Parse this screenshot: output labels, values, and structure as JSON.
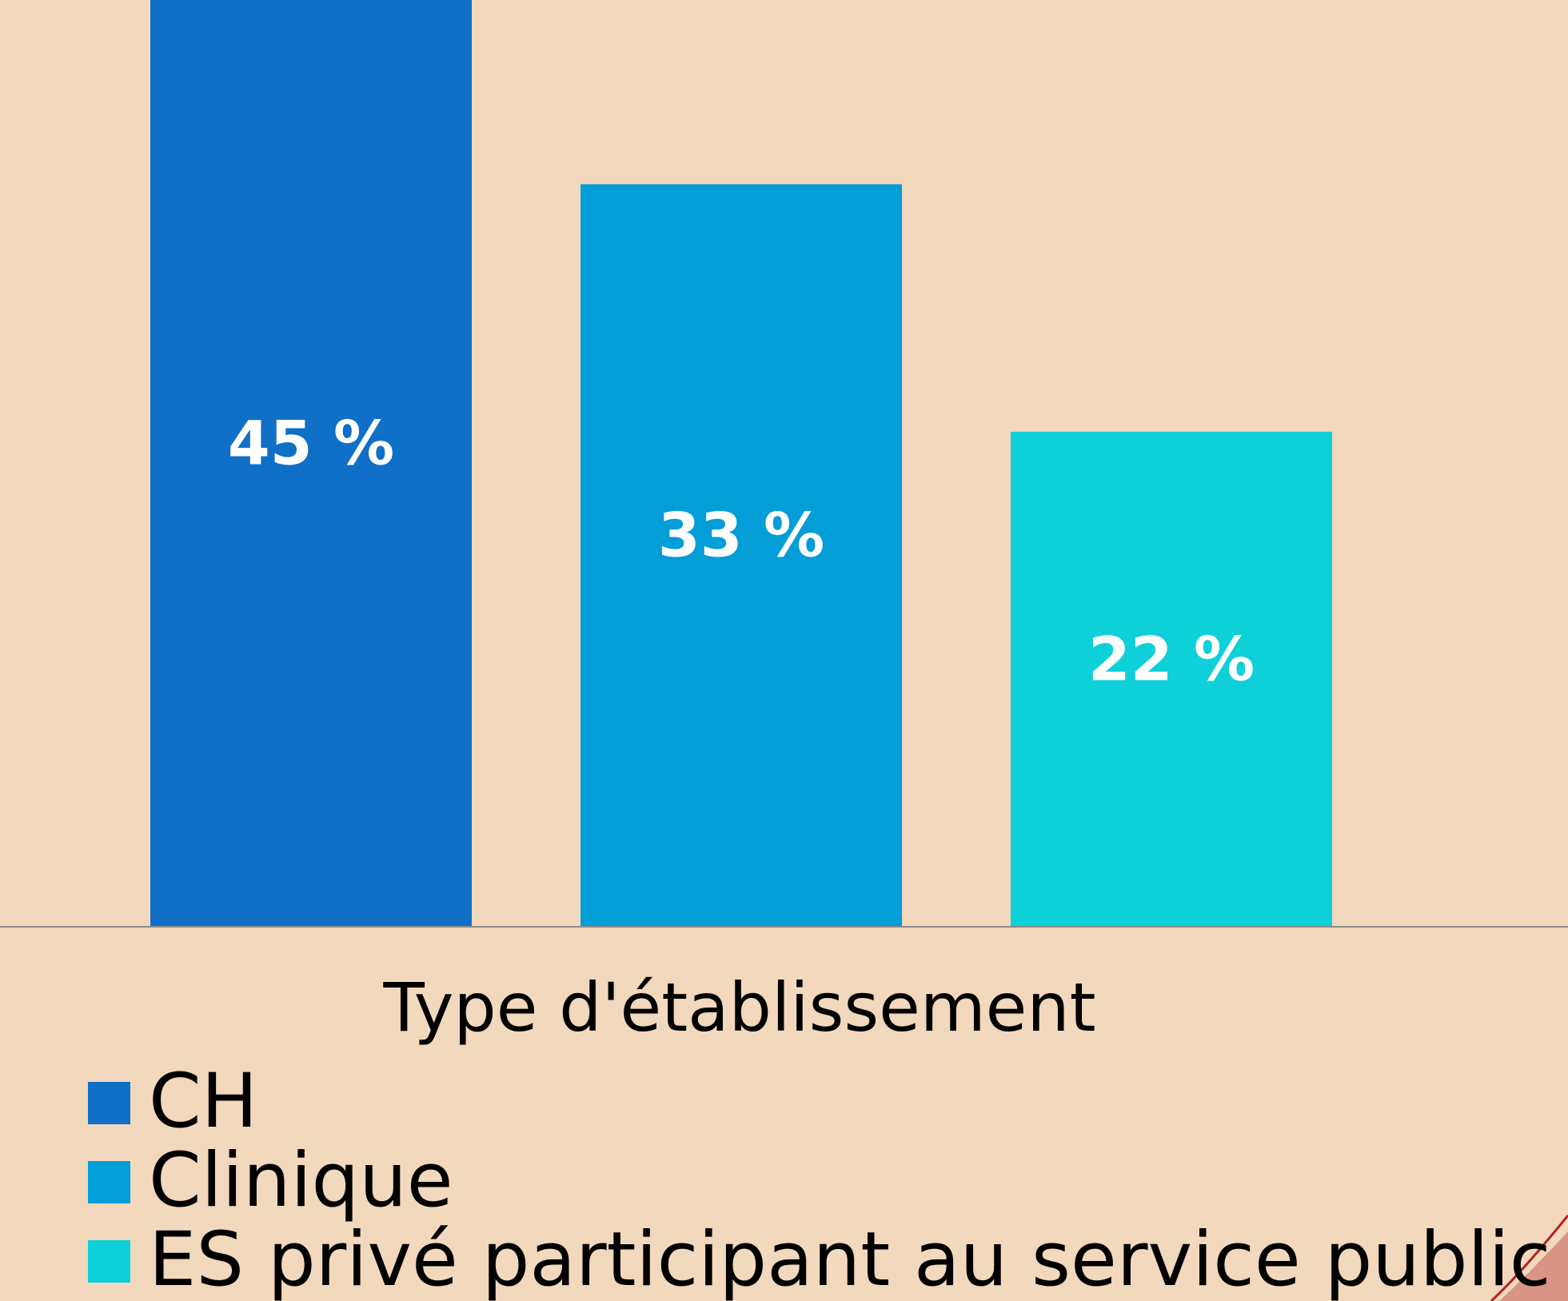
{
  "chart_data": {
    "type": "bar",
    "categories": [
      "CH",
      "Clinique",
      "ES privé participant au service public"
    ],
    "values": [
      45,
      33,
      22
    ],
    "value_labels": [
      "45 %",
      "33 %",
      "22 %"
    ],
    "colors": [
      "#106fc6",
      "#039dd8",
      "#0dd0d8"
    ],
    "x_axis_label": "Type d'établissement",
    "legend": "bottom-left"
  }
}
